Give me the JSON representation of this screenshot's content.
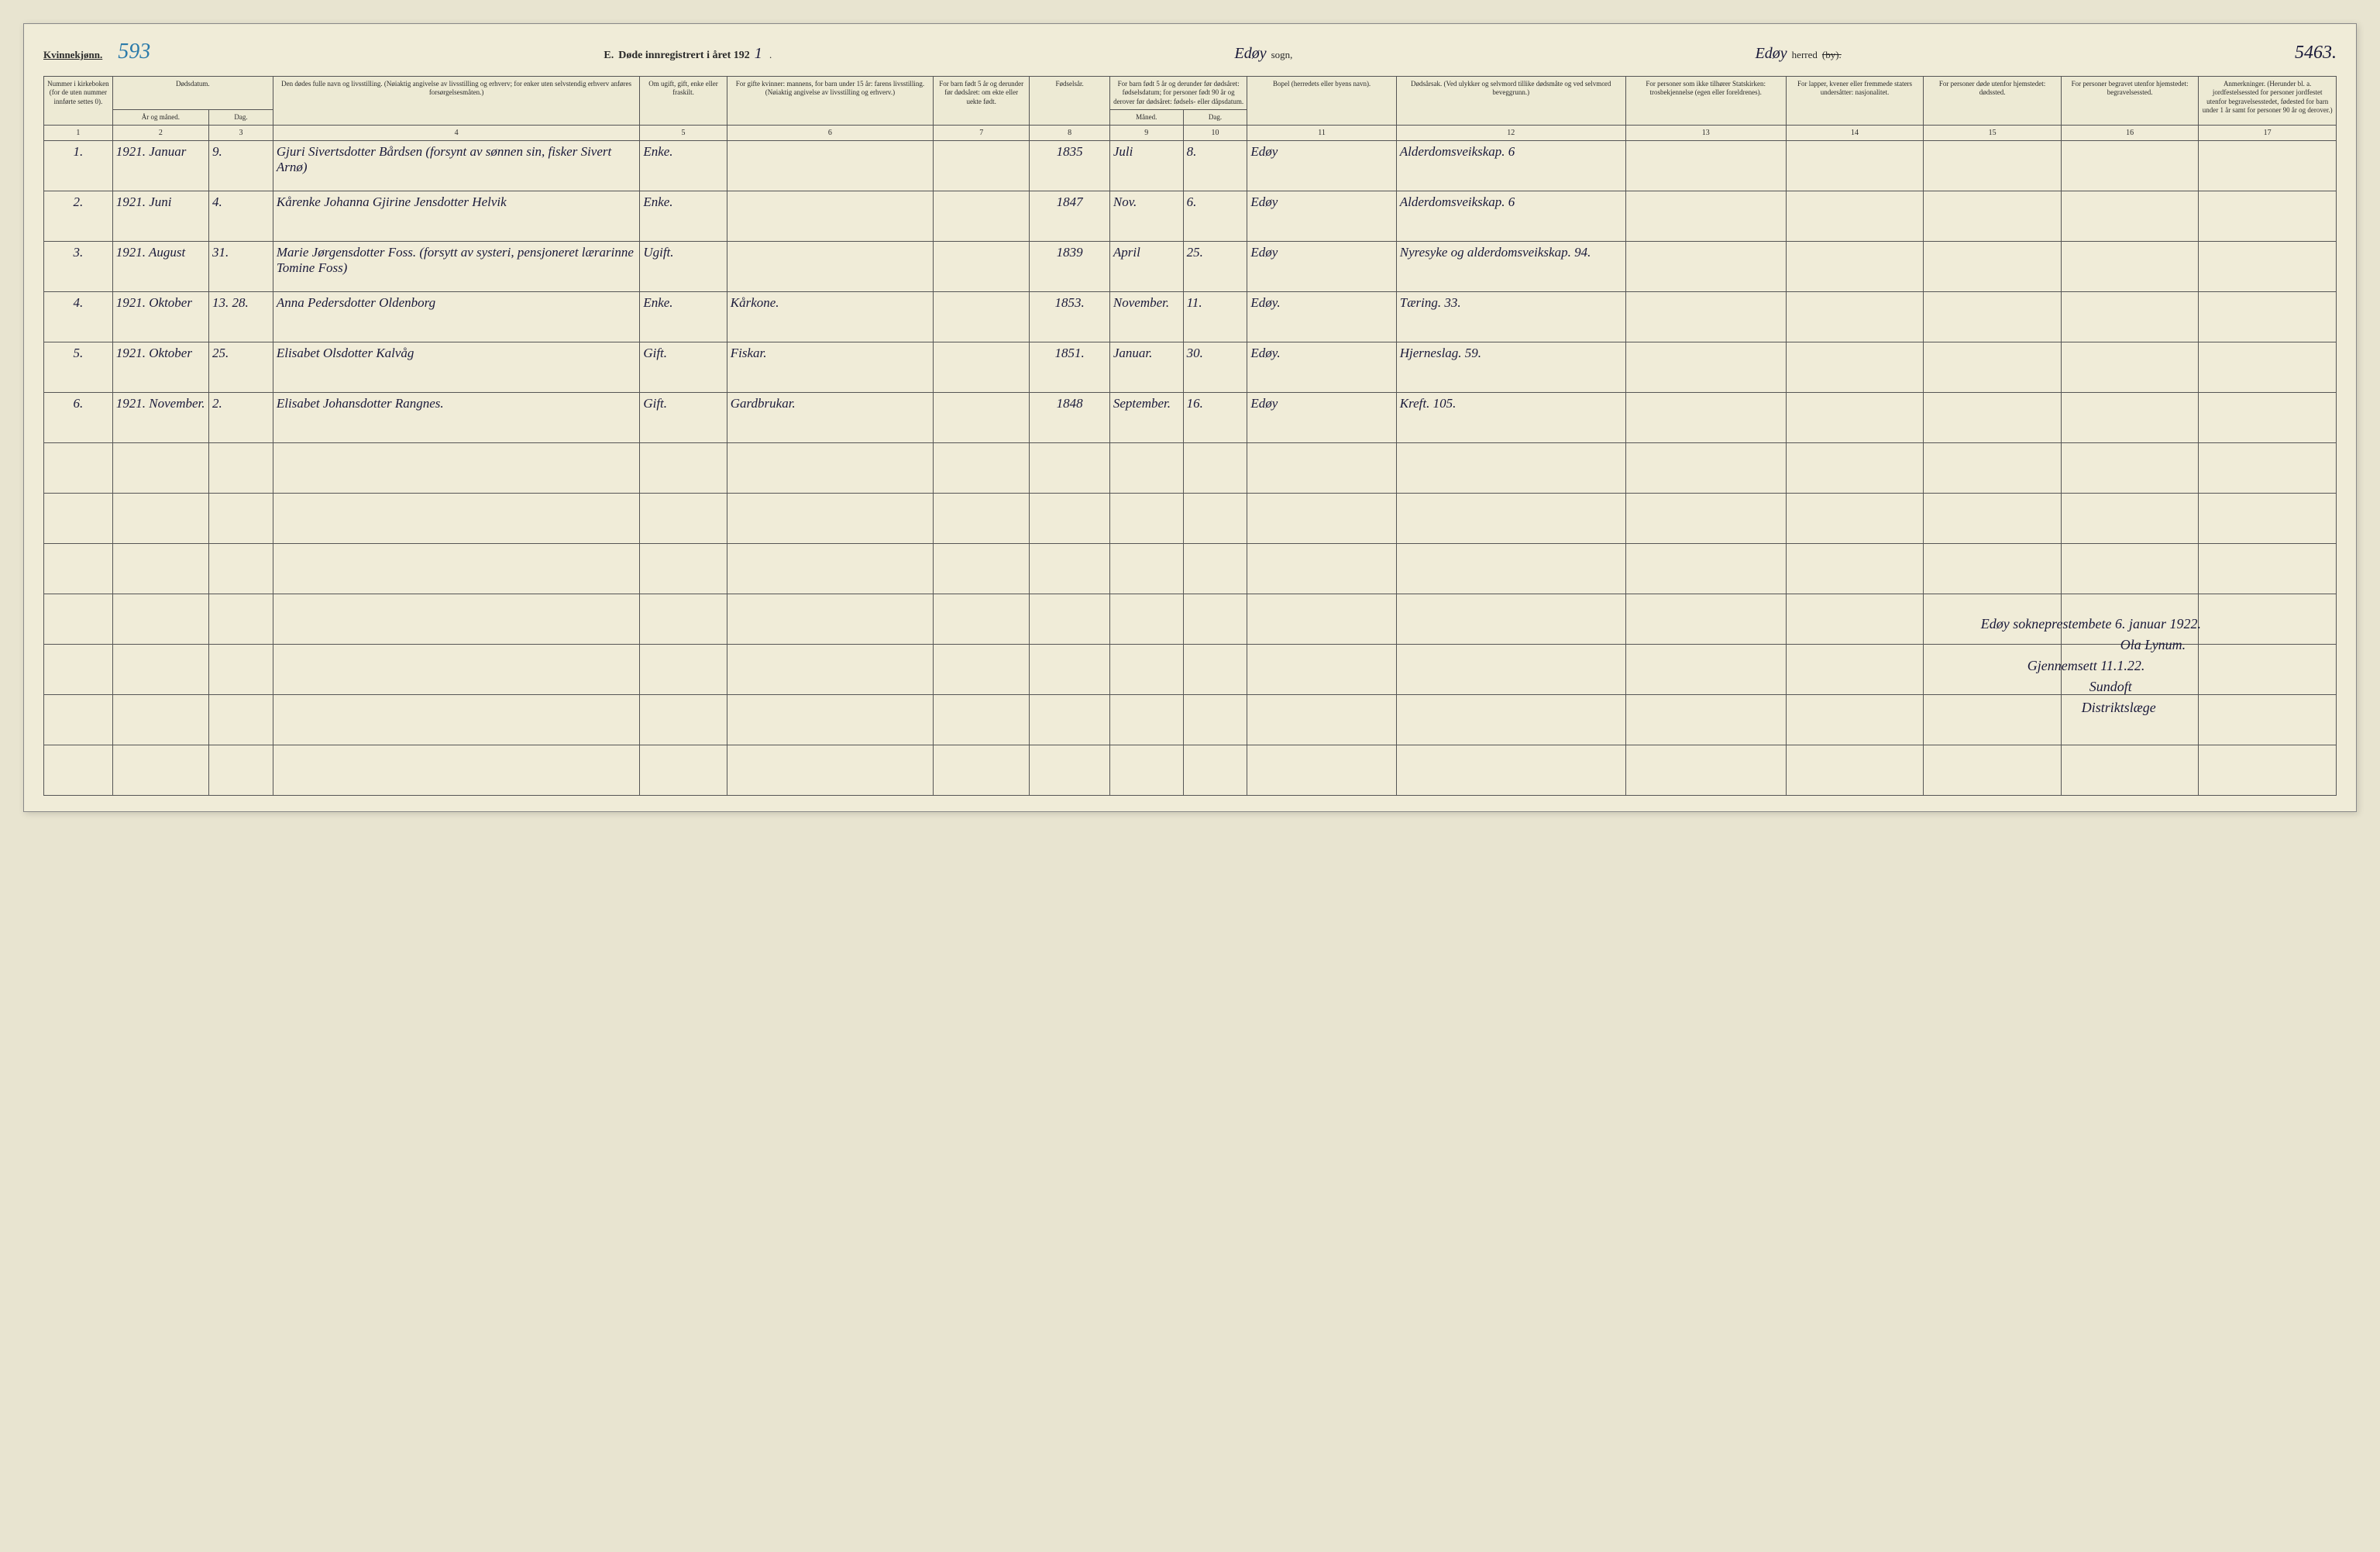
{
  "header": {
    "gender_label": "Kvinnekjønn.",
    "page_stamp": "593",
    "section_letter": "E.",
    "title_prefix": "Døde innregistrert i året 192",
    "year_suffix_hw": "1",
    "sogn_hw": "Edøy",
    "sogn_label": "sogn,",
    "herred_hw": "Edøy",
    "herred_label": "herred",
    "herred_strike": "(by).",
    "page_number_hw": "5463."
  },
  "columns": {
    "c1": "Nummer i kirke­boken (for de uten nummer innførte settes 0).",
    "c2a": "Dødsdatum.",
    "c2b": "År og måned.",
    "c3": "Dag.",
    "c4": "Den dødes fulle navn og livsstilling. (Nøiaktig angivelse av livsstilling og erhverv; for enker uten selvstendig erhverv anføres forsørgelsesmåten.)",
    "c5": "Om ugift, gift, enke eller fraskilt.",
    "c6": "For gifte kvinner: mannens, for barn under 15 år: farens livsstilling. (Nøiaktig angivelse av livsstilling og erhverv.)",
    "c7": "For barn født 5 år og derunder før døds­året: om ekte eller uekte født.",
    "c8": "Fødsels­år.",
    "c9": "For barn født 5 år og der­under før dødsåret: fødselsdatum; for personer født 90 år og derover før dødsåret: fødsels- eller dåpsdatum.",
    "c9a": "Måned.",
    "c9b": "Dag.",
    "c11": "Bopel (herredets eller byens navn).",
    "c12": "Dødsårsak. (Ved ulykker og selv­mord tillike dødsmåte og ved selvmord beveggrunn.)",
    "c13": "For personer som ikke tilhører Statskirken: trosbekjennelse (egen eller foreldrenes).",
    "c14": "For lapper, kvener eller fremmede staters undersåtter: nasjonalitet.",
    "c15": "For personer døde utenfor hjemstedet: dødssted.",
    "c16": "For personer begravet utenfor hjemstedet: begravelsessted.",
    "c17": "Anmerkninger. (Herunder bl. a. jordfestelsessted for personer jordfestet utenfor begravelses­stedet, fødested for barn under 1 år samt for personer 90 år og derover.)"
  },
  "colnums": [
    "1",
    "2",
    "3",
    "4",
    "5",
    "6",
    "7",
    "8",
    "9",
    "10",
    "11",
    "12",
    "13",
    "14",
    "15",
    "16",
    "17"
  ],
  "rows": [
    {
      "n": "1.",
      "ym": "1921. Januar",
      "d": "9.",
      "name": "Gjuri Sivertsdotter Bårdsen (forsynt av sønnen sin, fisker Sivert Arnø)",
      "ms": "Enke.",
      "sp": "",
      "e": "",
      "by": "1835",
      "bm": "Juli",
      "bd": "8.",
      "res": "Edøy",
      "cause": "Alderdomsveik­skap.  6",
      "c13": "",
      "c14": "",
      "c15": "",
      "c16": "",
      "c17": ""
    },
    {
      "n": "2.",
      "ym": "1921. Juni",
      "d": "4.",
      "name": "Kårenke Johanna Gjirine Jensdotter Helvik",
      "ms": "Enke.",
      "sp": "",
      "e": "",
      "by": "1847",
      "bm": "Nov.",
      "bd": "6.",
      "res": "Edøy",
      "cause": "Alderdoms­veikskap.  6",
      "c13": "",
      "c14": "",
      "c15": "",
      "c16": "",
      "c17": ""
    },
    {
      "n": "3.",
      "ym": "1921. August",
      "d": "31.",
      "name": "Marie Jørgensdotter Foss. (forsytt av systeri, pensjoneret lærarinne Tomine Foss)",
      "ms": "Ugift.",
      "sp": "",
      "e": "",
      "by": "1839",
      "bm": "April",
      "bd": "25.",
      "res": "Edøy",
      "cause": "Nyresyke og alderdoms­veikskap. 94.",
      "c13": "",
      "c14": "",
      "c15": "",
      "c16": "",
      "c17": ""
    },
    {
      "n": "4.",
      "ym": "1921. Oktober",
      "d": "13. 28.",
      "name": "Anna Pedersdotter Oldenborg",
      "ms": "Enke.",
      "sp": "Kårkone.",
      "e": "",
      "by": "1853.",
      "bm": "Novem­ber.",
      "bd": "11.",
      "res": "Edøy.",
      "cause": "Tæring. 33.",
      "c13": "",
      "c14": "",
      "c15": "",
      "c16": "",
      "c17": ""
    },
    {
      "n": "5.",
      "ym": "1921. Oktober",
      "d": "25.",
      "name": "Elisabet Olsdotter Kalvåg",
      "ms": "Gift.",
      "sp": "Fiskar.",
      "e": "",
      "by": "1851.",
      "bm": "Janu­ar.",
      "bd": "30.",
      "res": "Edøy.",
      "cause": "Hjerneslag. 59.",
      "c13": "",
      "c14": "",
      "c15": "",
      "c16": "",
      "c17": ""
    },
    {
      "n": "6.",
      "ym": "1921. Novem­ber.",
      "d": "2.",
      "name": "Elisabet Johansdotter Rangnes.",
      "ms": "Gift.",
      "sp": "Gardbrukar.",
      "e": "",
      "by": "1848",
      "bm": "Septem­ber.",
      "bd": "16.",
      "res": "Edøy",
      "cause": "Kreft. 105.",
      "c13": "",
      "c14": "",
      "c15": "",
      "c16": "",
      "c17": ""
    }
  ],
  "signatures": {
    "line1": "Edøy sokneprestembete 6. januar 1922.",
    "line2": "Ola Lynum.",
    "line3": "Gjennemsett 11.1.22.",
    "line4": "Sundoft",
    "line5": "Distriktslæge"
  },
  "style": {
    "background_color": "#f0ecd8",
    "border_color": "#555555",
    "text_color": "#2a2a2a",
    "handwriting_color": "#1a1a3a",
    "stamp_color": "#2a7aaa",
    "header_fontsize": 13,
    "th_fontsize": 9,
    "cell_fontsize": 14,
    "hw_fontsize": 17,
    "column_widths_pct": [
      3.0,
      4.2,
      2.8,
      16.0,
      3.8,
      9.0,
      4.2,
      3.5,
      3.2,
      2.8,
      6.5,
      10.0,
      7.0,
      6.0,
      6.0,
      6.0,
      6.0
    ]
  }
}
